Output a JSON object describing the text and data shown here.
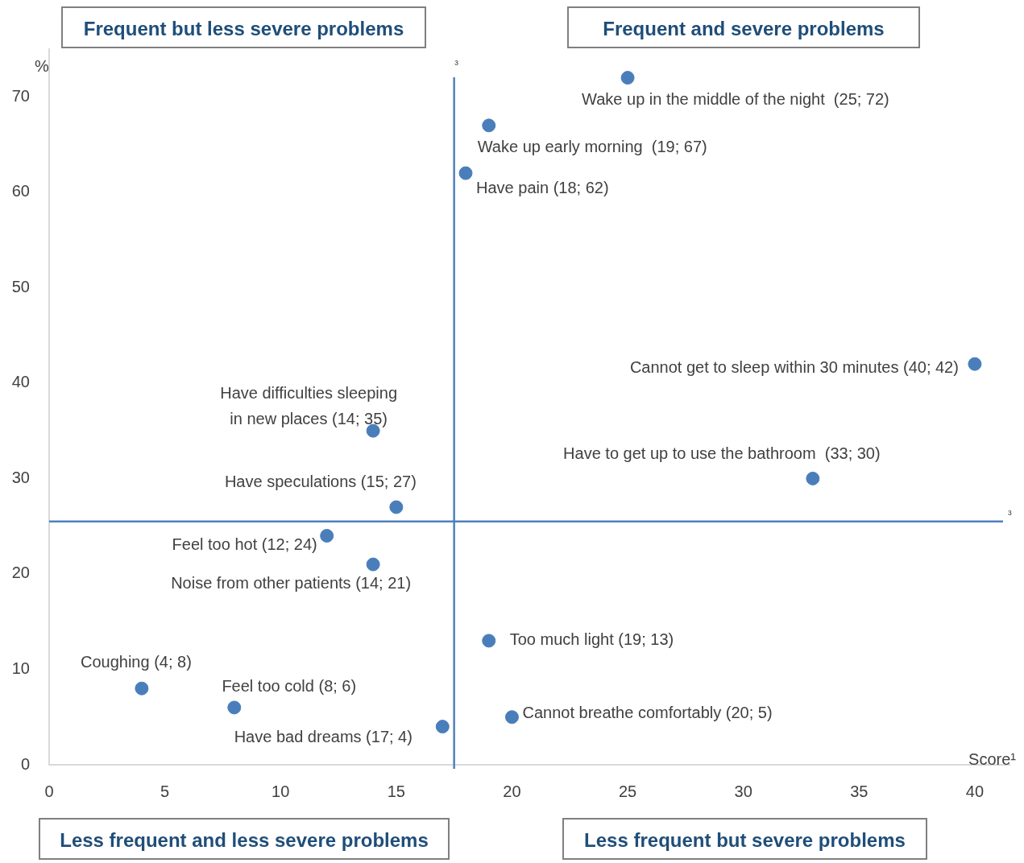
{
  "chart_data": {
    "type": "scatter",
    "xlabel": "Score¹",
    "ylabel": "%",
    "xlim": [
      0,
      41.5
    ],
    "ylim": [
      0,
      75
    ],
    "xticks": [
      0,
      5,
      10,
      15,
      20,
      25,
      30,
      35,
      40
    ],
    "yticks": [
      0,
      10,
      20,
      30,
      40,
      50,
      60,
      70
    ],
    "grid": false,
    "legend": false,
    "marker": "circle",
    "series": [
      {
        "color": "#4a7ebb",
        "x": [
          25,
          19,
          18,
          40,
          14,
          33,
          15,
          12,
          14,
          19,
          4,
          8,
          17,
          20
        ],
        "values": [
          72,
          67,
          62,
          42,
          35,
          30,
          27,
          24,
          21,
          13,
          8,
          6,
          4,
          5
        ],
        "value_labels": [
          "Wake up in the middle of the night  (25; 72)",
          "Wake up early morning  (19; 67)",
          "Have pain (18; 62)",
          "Cannot get to sleep within 30 minutes (40; 42)",
          "Have difficulties sleeping\nin new places (14; 35)",
          "Have to get up to use the bathroom  (33; 30)",
          "Have speculations (15; 27)",
          "Feel too hot (12; 24)",
          "Noise from other patients (14; 21)",
          "Too much light (19; 13)",
          "Coughing (4; 8)",
          "Feel too cold (8; 6)",
          "Have bad dreams (17; 4)",
          "Cannot breathe comfortably (20; 5)"
        ]
      }
    ],
    "ref_lines": [
      {
        "axis": "x",
        "value": 17.5,
        "label": "³",
        "color": "#4f81bd"
      },
      {
        "axis": "y",
        "value": 25.5,
        "label": "³",
        "color": "#4f81bd"
      }
    ],
    "annotations": [
      "Frequent but less severe problems",
      "Frequent and severe problems",
      "Less frequent and less severe problems",
      "Less frequent but severe problems"
    ]
  }
}
